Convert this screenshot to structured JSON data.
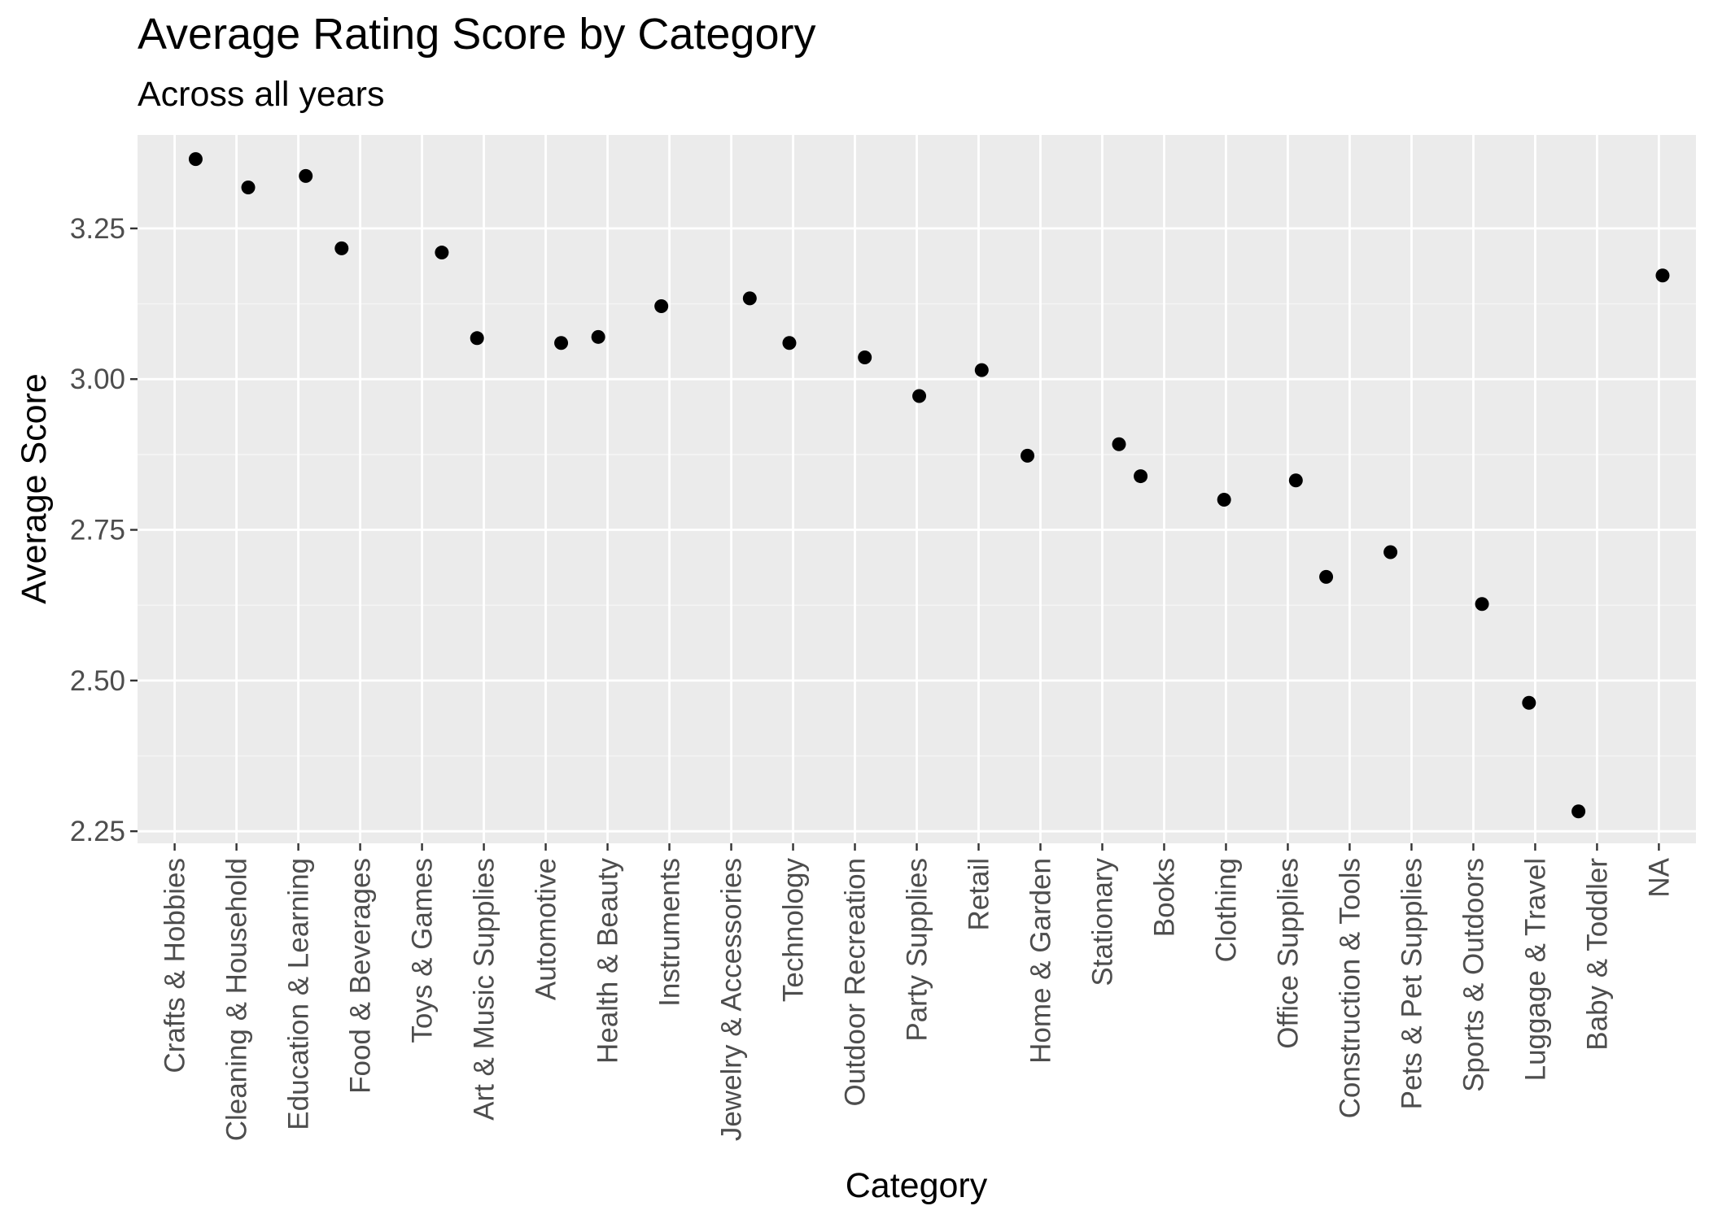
{
  "chart_data": {
    "type": "scatter",
    "title": "Average Rating Score by Category",
    "subtitle": "Across all years",
    "xlabel": "Category",
    "ylabel": "Average Score",
    "ylim": [
      2.23,
      3.405
    ],
    "yticks": [
      2.25,
      2.5,
      2.75,
      3.0,
      3.25
    ],
    "ytick_labels": [
      "2.25",
      "2.50",
      "2.75",
      "3.00",
      "3.25"
    ],
    "grid": true,
    "legend": "none",
    "categories": [
      "Crafts & Hobbies",
      "Cleaning & Household",
      "Education & Learning",
      "Food & Beverages",
      "Toys & Games",
      "Art & Music Supplies",
      "Automotive",
      "Health & Beauty",
      "Instruments",
      "Jewelry & Accessories",
      "Technology",
      "Outdoor Recreation",
      "Party Supplies",
      "Retail",
      "Home & Garden",
      "Stationary",
      "Books",
      "Clothing",
      "Office Supplies",
      "Construction & Tools",
      "Pets & Pet Supplies",
      "Sports & Outdoors",
      "Luggage & Travel",
      "Baby & Toddler",
      "NA"
    ],
    "points": [
      {
        "x": "Crafts & Hobbies",
        "y": 3.365
      },
      {
        "x": "Cleaning & Household",
        "y": 3.318
      },
      {
        "x": "Education & Learning",
        "y": 3.337
      },
      {
        "x": "Food & Beverages",
        "y": 3.217
      },
      {
        "x": "Toys & Games",
        "y": 3.21
      },
      {
        "x": "Art & Music Supplies",
        "y": 3.068
      },
      {
        "x": "Automotive",
        "y": 3.06
      },
      {
        "x": "Health & Beauty",
        "y": 3.07
      },
      {
        "x": "Instruments",
        "y": 3.121
      },
      {
        "x": "Jewelry & Accessories",
        "y": 3.134
      },
      {
        "x": "Technology",
        "y": 3.06
      },
      {
        "x": "Outdoor Recreation",
        "y": 3.036
      },
      {
        "x": "Party Supplies",
        "y": 2.972
      },
      {
        "x": "Retail",
        "y": 3.015
      },
      {
        "x": "Home & Garden",
        "y": 2.873
      },
      {
        "x": "Stationary",
        "y": 2.892
      },
      {
        "x": "Books",
        "y": 2.839
      },
      {
        "x": "Clothing",
        "y": 2.8
      },
      {
        "x": "Office Supplies",
        "y": 2.832
      },
      {
        "x": "Construction & Tools",
        "y": 2.672
      },
      {
        "x": "Pets & Pet Supplies",
        "y": 2.713
      },
      {
        "x": "Sports & Outdoors",
        "y": 2.627
      },
      {
        "x": "Luggage & Travel",
        "y": 2.463
      },
      {
        "x": "Baby & Toddler",
        "y": 2.283
      },
      {
        "x": "NA",
        "y": 3.172
      }
    ],
    "colors": {
      "panel_background": "#ebebeb",
      "grid_major": "#ffffff",
      "grid_minor": "#f5f5f5",
      "point": "#000000",
      "tick_label": "#4d4d4d",
      "tick_mark": "#333333"
    }
  }
}
